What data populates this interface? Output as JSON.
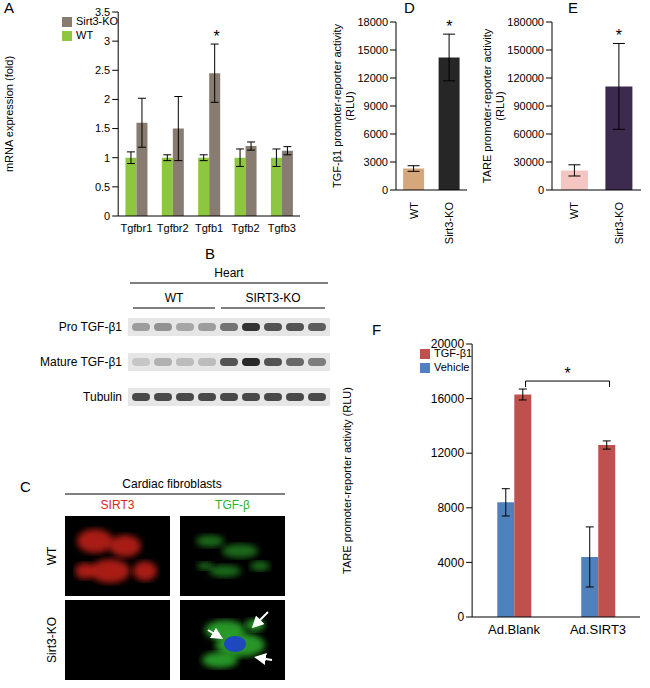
{
  "chart_data": [
    {
      "panel": "A",
      "type": "bar",
      "categories": [
        "Tgfbr1",
        "Tgfbr2",
        "Tgfb1",
        "Tgfb2",
        "Tgfb3"
      ],
      "series": [
        {
          "name": "WT",
          "color": "#8dc63f",
          "values": [
            1,
            1,
            1,
            1,
            1
          ],
          "error": [
            0.1,
            0.05,
            0.05,
            0.15,
            0.15
          ]
        },
        {
          "name": "Sirt3-KO",
          "color": "#877c6f",
          "values": [
            1.6,
            1.5,
            2.45,
            1.2,
            1.12
          ],
          "error": [
            0.42,
            0.55,
            0.5,
            0.07,
            0.07
          ]
        }
      ],
      "y_label": "mRNA expression (fold)",
      "ylim": [
        0,
        3.5
      ],
      "yticks": [
        0,
        0.5,
        1,
        1.5,
        2,
        2.5,
        3,
        3.5
      ],
      "legend": "upper left",
      "annotations": [
        {
          "text": "*",
          "category": "Tgfb1",
          "series": "Sirt3-KO"
        }
      ]
    },
    {
      "panel": "D",
      "type": "bar",
      "categories": [
        "WT",
        "Sirt3-KO"
      ],
      "values": [
        2300,
        14200
      ],
      "error": [
        300,
        2500
      ],
      "colors": [
        "#d6a77a",
        "#262626"
      ],
      "y_label": "TGF-β1 promoter-reporter activity (RLU)",
      "ylim": [
        0,
        18000
      ],
      "yticks": [
        0,
        3000,
        6000,
        9000,
        12000,
        15000,
        18000
      ],
      "annotations": [
        {
          "text": "*",
          "category": "Sirt3-KO"
        }
      ]
    },
    {
      "panel": "E",
      "type": "bar",
      "categories": [
        "WT",
        "Sirt3-KO"
      ],
      "values": [
        21000,
        111000
      ],
      "error": [
        6000,
        46000
      ],
      "colors": [
        "#f4c6c2",
        "#3c2a4f"
      ],
      "y_label": "TARE promoter-reporter activity (RLU)",
      "ylim": [
        0,
        180000
      ],
      "yticks": [
        0,
        30000,
        60000,
        90000,
        120000,
        150000,
        180000
      ],
      "annotations": [
        {
          "text": "*",
          "category": "Sirt3-KO"
        }
      ]
    },
    {
      "panel": "F",
      "type": "bar",
      "categories": [
        "Ad.Blank",
        "Ad.SIRT3"
      ],
      "series": [
        {
          "name": "Vehicle",
          "color": "#4f81bd",
          "values": [
            8400,
            4400
          ],
          "error": [
            1000,
            2200
          ]
        },
        {
          "name": "TGF-β1",
          "color": "#c0504d",
          "values": [
            16300,
            12600
          ],
          "error": [
            400,
            300
          ]
        }
      ],
      "y_label": "TARE  promoter-reporter activity (RLU)",
      "ylim": [
        0,
        20000
      ],
      "yticks": [
        0,
        4000,
        8000,
        12000,
        16000,
        20000
      ],
      "legend": "upper left",
      "annotations": [
        {
          "text": "*",
          "from": "Ad.Blank",
          "to": "Ad.SIRT3",
          "series": "TGF-β1"
        }
      ]
    }
  ],
  "blot": {
    "panel": "B",
    "title": "Heart",
    "groups": [
      {
        "label": "WT",
        "lanes": 4
      },
      {
        "label": "SIRT3-KO",
        "lanes": 5
      }
    ],
    "rows": [
      {
        "label": "Pro TGF-β1",
        "intensity": [
          0.35,
          0.4,
          0.3,
          0.35,
          0.55,
          0.85,
          0.7,
          0.7,
          0.65
        ]
      },
      {
        "label": "Mature TGF-β1",
        "intensity": [
          0.15,
          0.25,
          0.2,
          0.2,
          0.7,
          0.9,
          0.7,
          0.6,
          0.5
        ]
      },
      {
        "label": "Tubulin",
        "intensity": [
          0.75,
          0.75,
          0.75,
          0.75,
          0.75,
          0.75,
          0.75,
          0.75,
          0.75
        ]
      }
    ]
  },
  "images": {
    "panel": "C",
    "title": "Cardiac fibroblasts",
    "columns": [
      {
        "label": "SIRT3",
        "color": "#e0261c"
      },
      {
        "label": "TGF-β",
        "color": "#2fb12f"
      }
    ],
    "rows": [
      "WT",
      "Sirt3-KO"
    ]
  }
}
